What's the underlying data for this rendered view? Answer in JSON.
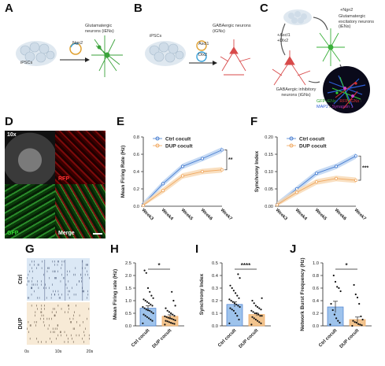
{
  "panels": {
    "A": {
      "letter": "A",
      "ipsc": "iPSCs",
      "gene": "Ngn2",
      "target": "Glutamatergic neurons (iENs)"
    },
    "B": {
      "letter": "B",
      "ipsc": "iPSCs",
      "gene1": "Ascl1",
      "gene2": "Dlx2",
      "target": "GABAergic neurons (iGNs)"
    },
    "C": {
      "letter": "C",
      "gene_top": "+Ngn2",
      "gene_left1": "+Ascl1",
      "gene_left2": "+Dlx2",
      "exc": "Glutamatergic excitatory neurons (iENs)",
      "inh": "GABAergic inhibitory neurons (iGNs)",
      "legend1": "GFP-iENs",
      "legend_sep1": " / ",
      "legend2": "RFP-iGNs",
      "legend_sep2": " /",
      "legend3": "MAP2",
      "legend_sep3": " / ",
      "legend4": "Synapsin 1"
    },
    "D": {
      "letter": "D",
      "zoom": "10x",
      "rfp": "RFP",
      "gfp": "GFP",
      "merge": "Merge"
    },
    "G": {
      "letter": "G",
      "row1": "Ctrl",
      "row2": "DUP",
      "t0": "0s",
      "t1": "10s",
      "t2": "20s"
    },
    "H": {
      "letter": "H"
    },
    "I": {
      "letter": "I"
    },
    "J": {
      "letter": "J"
    },
    "E": {
      "letter": "E"
    },
    "F": {
      "letter": "F"
    }
  },
  "colors": {
    "ctrl": "#4a7fd1",
    "dup": "#f0a860",
    "ctrl_fill": "#bcd3f2",
    "dup_fill": "#f8d9b5",
    "ctrl_bar": "#9ec3ec",
    "dup_bar": "#f2c48e"
  },
  "chart_data": [
    {
      "panel": "E",
      "type": "line",
      "ylabel": "Mean Firing Rate (Hz)",
      "categories": [
        "Week3",
        "Week4",
        "Week5",
        "Week6",
        "Week7"
      ],
      "ylim": [
        0,
        0.8
      ],
      "yticks": [
        "0.0",
        "0.2",
        "0.4",
        "0.6",
        "0.8"
      ],
      "series": [
        {
          "name": "Ctrl cocult",
          "values": [
            0.02,
            0.26,
            0.46,
            0.55,
            0.65
          ]
        },
        {
          "name": "DUP cocult",
          "values": [
            0.01,
            0.18,
            0.35,
            0.4,
            0.42
          ]
        }
      ],
      "significance": "**"
    },
    {
      "panel": "F",
      "type": "line",
      "ylabel": "Synchrony Index",
      "categories": [
        "Week3",
        "Week4",
        "Week5",
        "Week6",
        "Week7"
      ],
      "ylim": [
        0,
        0.2
      ],
      "yticks": [
        "0.00",
        "0.05",
        "0.10",
        "0.15",
        "0.20"
      ],
      "series": [
        {
          "name": "Ctrl cocult",
          "values": [
            0.005,
            0.05,
            0.095,
            0.115,
            0.145
          ]
        },
        {
          "name": "DUP cocult",
          "values": [
            0.004,
            0.04,
            0.07,
            0.08,
            0.075
          ]
        }
      ],
      "significance": "***"
    },
    {
      "panel": "H",
      "type": "bar",
      "ylabel": "Mean Firing rate (Hz)",
      "categories": [
        "Ctrl cocult",
        "DUP cocult"
      ],
      "values": [
        0.7,
        0.38
      ],
      "errors": [
        0.1,
        0.06
      ],
      "ylim": [
        0,
        2.5
      ],
      "yticks": [
        "0.0",
        "0.5",
        "1.0",
        "1.5",
        "2.0",
        "2.5"
      ],
      "significance": "*",
      "points": [
        [
          0.1,
          0.2,
          0.25,
          0.3,
          0.35,
          0.4,
          0.45,
          0.5,
          0.55,
          0.6,
          0.62,
          0.65,
          0.7,
          0.75,
          0.8,
          0.85,
          0.9,
          0.95,
          1.0,
          1.05,
          1.1,
          1.2,
          1.35,
          1.5,
          2.1,
          2.2
        ],
        [
          0.05,
          0.08,
          0.1,
          0.12,
          0.15,
          0.18,
          0.2,
          0.22,
          0.25,
          0.28,
          0.3,
          0.32,
          0.35,
          0.38,
          0.4,
          0.45,
          0.5,
          0.55,
          0.6,
          0.7,
          0.8,
          1.0,
          1.35
        ]
      ]
    },
    {
      "panel": "I",
      "type": "bar",
      "ylabel": "Synchrony Index",
      "categories": [
        "Ctrl cocult",
        "DUP cocult"
      ],
      "values": [
        0.17,
        0.09
      ],
      "errors": [
        0.02,
        0.01
      ],
      "ylim": [
        0,
        0.5
      ],
      "yticks": [
        "0.0",
        "0.1",
        "0.2",
        "0.3",
        "0.4",
        "0.5"
      ],
      "significance": "****",
      "points": [
        [
          0.02,
          0.05,
          0.08,
          0.1,
          0.12,
          0.13,
          0.14,
          0.15,
          0.16,
          0.17,
          0.18,
          0.19,
          0.2,
          0.21,
          0.22,
          0.24,
          0.26,
          0.28,
          0.3,
          0.32,
          0.38,
          0.41
        ],
        [
          0.01,
          0.02,
          0.03,
          0.04,
          0.05,
          0.06,
          0.07,
          0.08,
          0.08,
          0.09,
          0.1,
          0.1,
          0.11,
          0.12,
          0.13,
          0.14,
          0.15,
          0.16,
          0.18,
          0.2,
          0.22
        ]
      ]
    },
    {
      "panel": "J",
      "type": "bar",
      "ylabel": "Network Burst Frequency (Hz)",
      "categories": [
        "Ctrl cocult",
        "DUP cocult"
      ],
      "values": [
        0.3,
        0.1
      ],
      "errors": [
        0.09,
        0.04
      ],
      "ylim": [
        0,
        1.0
      ],
      "yticks": [
        "0.0",
        "0.2",
        "0.4",
        "0.6",
        "0.8",
        "1.0"
      ],
      "significance": "*",
      "points": [
        [
          0.02,
          0.05,
          0.08,
          0.12,
          0.18,
          0.25,
          0.35,
          0.55,
          0.6,
          0.62,
          0.7,
          0.8
        ],
        [
          0.0,
          0.01,
          0.02,
          0.03,
          0.05,
          0.06,
          0.08,
          0.1,
          0.15,
          0.35,
          0.45,
          0.5,
          0.65
        ]
      ]
    }
  ]
}
